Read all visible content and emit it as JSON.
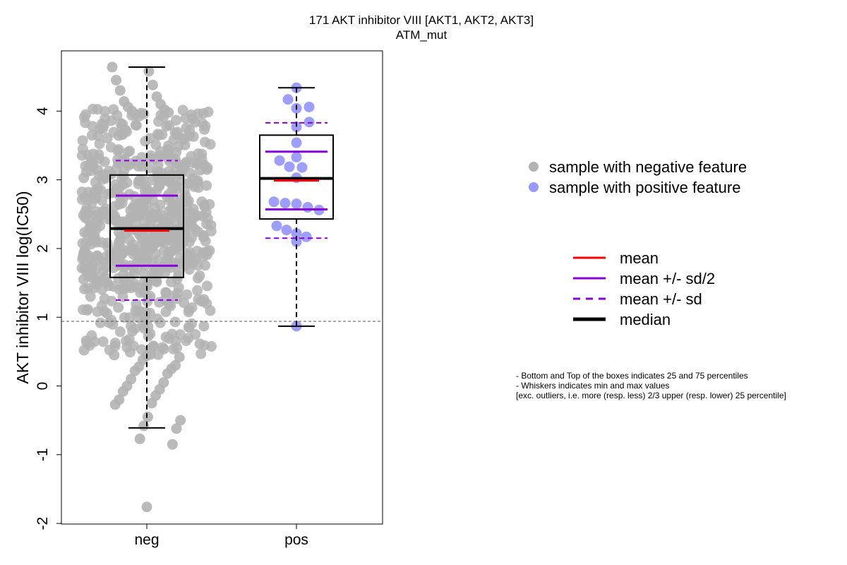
{
  "chart_data": {
    "type": "box",
    "title": "171 AKT inhibitor VIII [AKT1, AKT2, AKT3]",
    "subtitle": "ATM_mut",
    "ylabel": "AKT inhibitor VIII log(IC50)",
    "xlabel": "",
    "categories": [
      "neg",
      "pos"
    ],
    "ylim": [
      -2,
      4.7
    ],
    "yticks": [
      "-2",
      "-1",
      "0",
      "1",
      "2",
      "3",
      "4"
    ],
    "threshold_line": 0.94,
    "groups": [
      {
        "name": "neg",
        "color": "#b3b3b3",
        "q1": 1.58,
        "median": 2.29,
        "q3": 3.07,
        "whisker_low": -0.61,
        "whisker_high": 4.64,
        "mean": 2.26,
        "mean_minus_half_sd": 1.75,
        "mean_plus_half_sd": 2.77,
        "mean_minus_sd": 1.25,
        "mean_plus_sd": 3.28,
        "n_points": 700,
        "outliers": [
          -1.76
        ],
        "points": [
          4.64,
          4.58,
          4.45,
          4.38,
          4.3,
          4.21,
          4.14,
          4.1,
          4.06,
          4.02,
          4.0,
          3.98,
          3.95,
          -0.85,
          -0.77,
          -0.62,
          -0.58,
          -0.5,
          -0.45,
          -0.27,
          -0.25,
          -0.2,
          -0.14,
          -0.08,
          -0.05,
          0.0,
          0.05,
          0.1,
          0.18,
          0.22,
          0.25,
          0.28,
          0.3,
          0.38,
          0.42,
          0.44,
          0.45,
          0.46
        ]
      },
      {
        "name": "pos",
        "color": "#9999ff",
        "q1": 2.43,
        "median": 3.02,
        "q3": 3.65,
        "whisker_low": 0.87,
        "whisker_high": 4.34,
        "mean": 2.99,
        "mean_minus_half_sd": 2.57,
        "mean_plus_half_sd": 3.41,
        "mean_minus_sd": 2.15,
        "mean_plus_sd": 3.83,
        "points": [
          4.34,
          4.17,
          4.06,
          4.04,
          3.84,
          3.77,
          3.54,
          3.33,
          3.28,
          3.19,
          3.18,
          3.03,
          2.68,
          2.66,
          2.65,
          2.6,
          2.56,
          2.33,
          2.27,
          2.22,
          2.17,
          2.1,
          0.87
        ]
      }
    ],
    "legend": {
      "placement": "right",
      "points": [
        {
          "label": "sample with negative feature",
          "color": "#b3b3b3"
        },
        {
          "label": "sample with positive feature",
          "color": "#9999ff"
        }
      ],
      "lines": [
        {
          "label": "mean",
          "color": "#ff0000",
          "style": "solid"
        },
        {
          "label": "mean +/- sd/2",
          "color": "#8800dd",
          "style": "solid"
        },
        {
          "label": "mean +/- sd",
          "color": "#8800dd",
          "style": "dashed"
        },
        {
          "label": "median",
          "color": "#000000",
          "style": "thick"
        }
      ]
    },
    "notes": [
      "- Bottom and Top of the boxes indicates 25 and 75 percentiles",
      "- Whiskers indicates min and max values",
      "[exc. outliers, i.e. more (resp. less) 2/3 upper (resp. lower) 25 percentile]"
    ]
  }
}
